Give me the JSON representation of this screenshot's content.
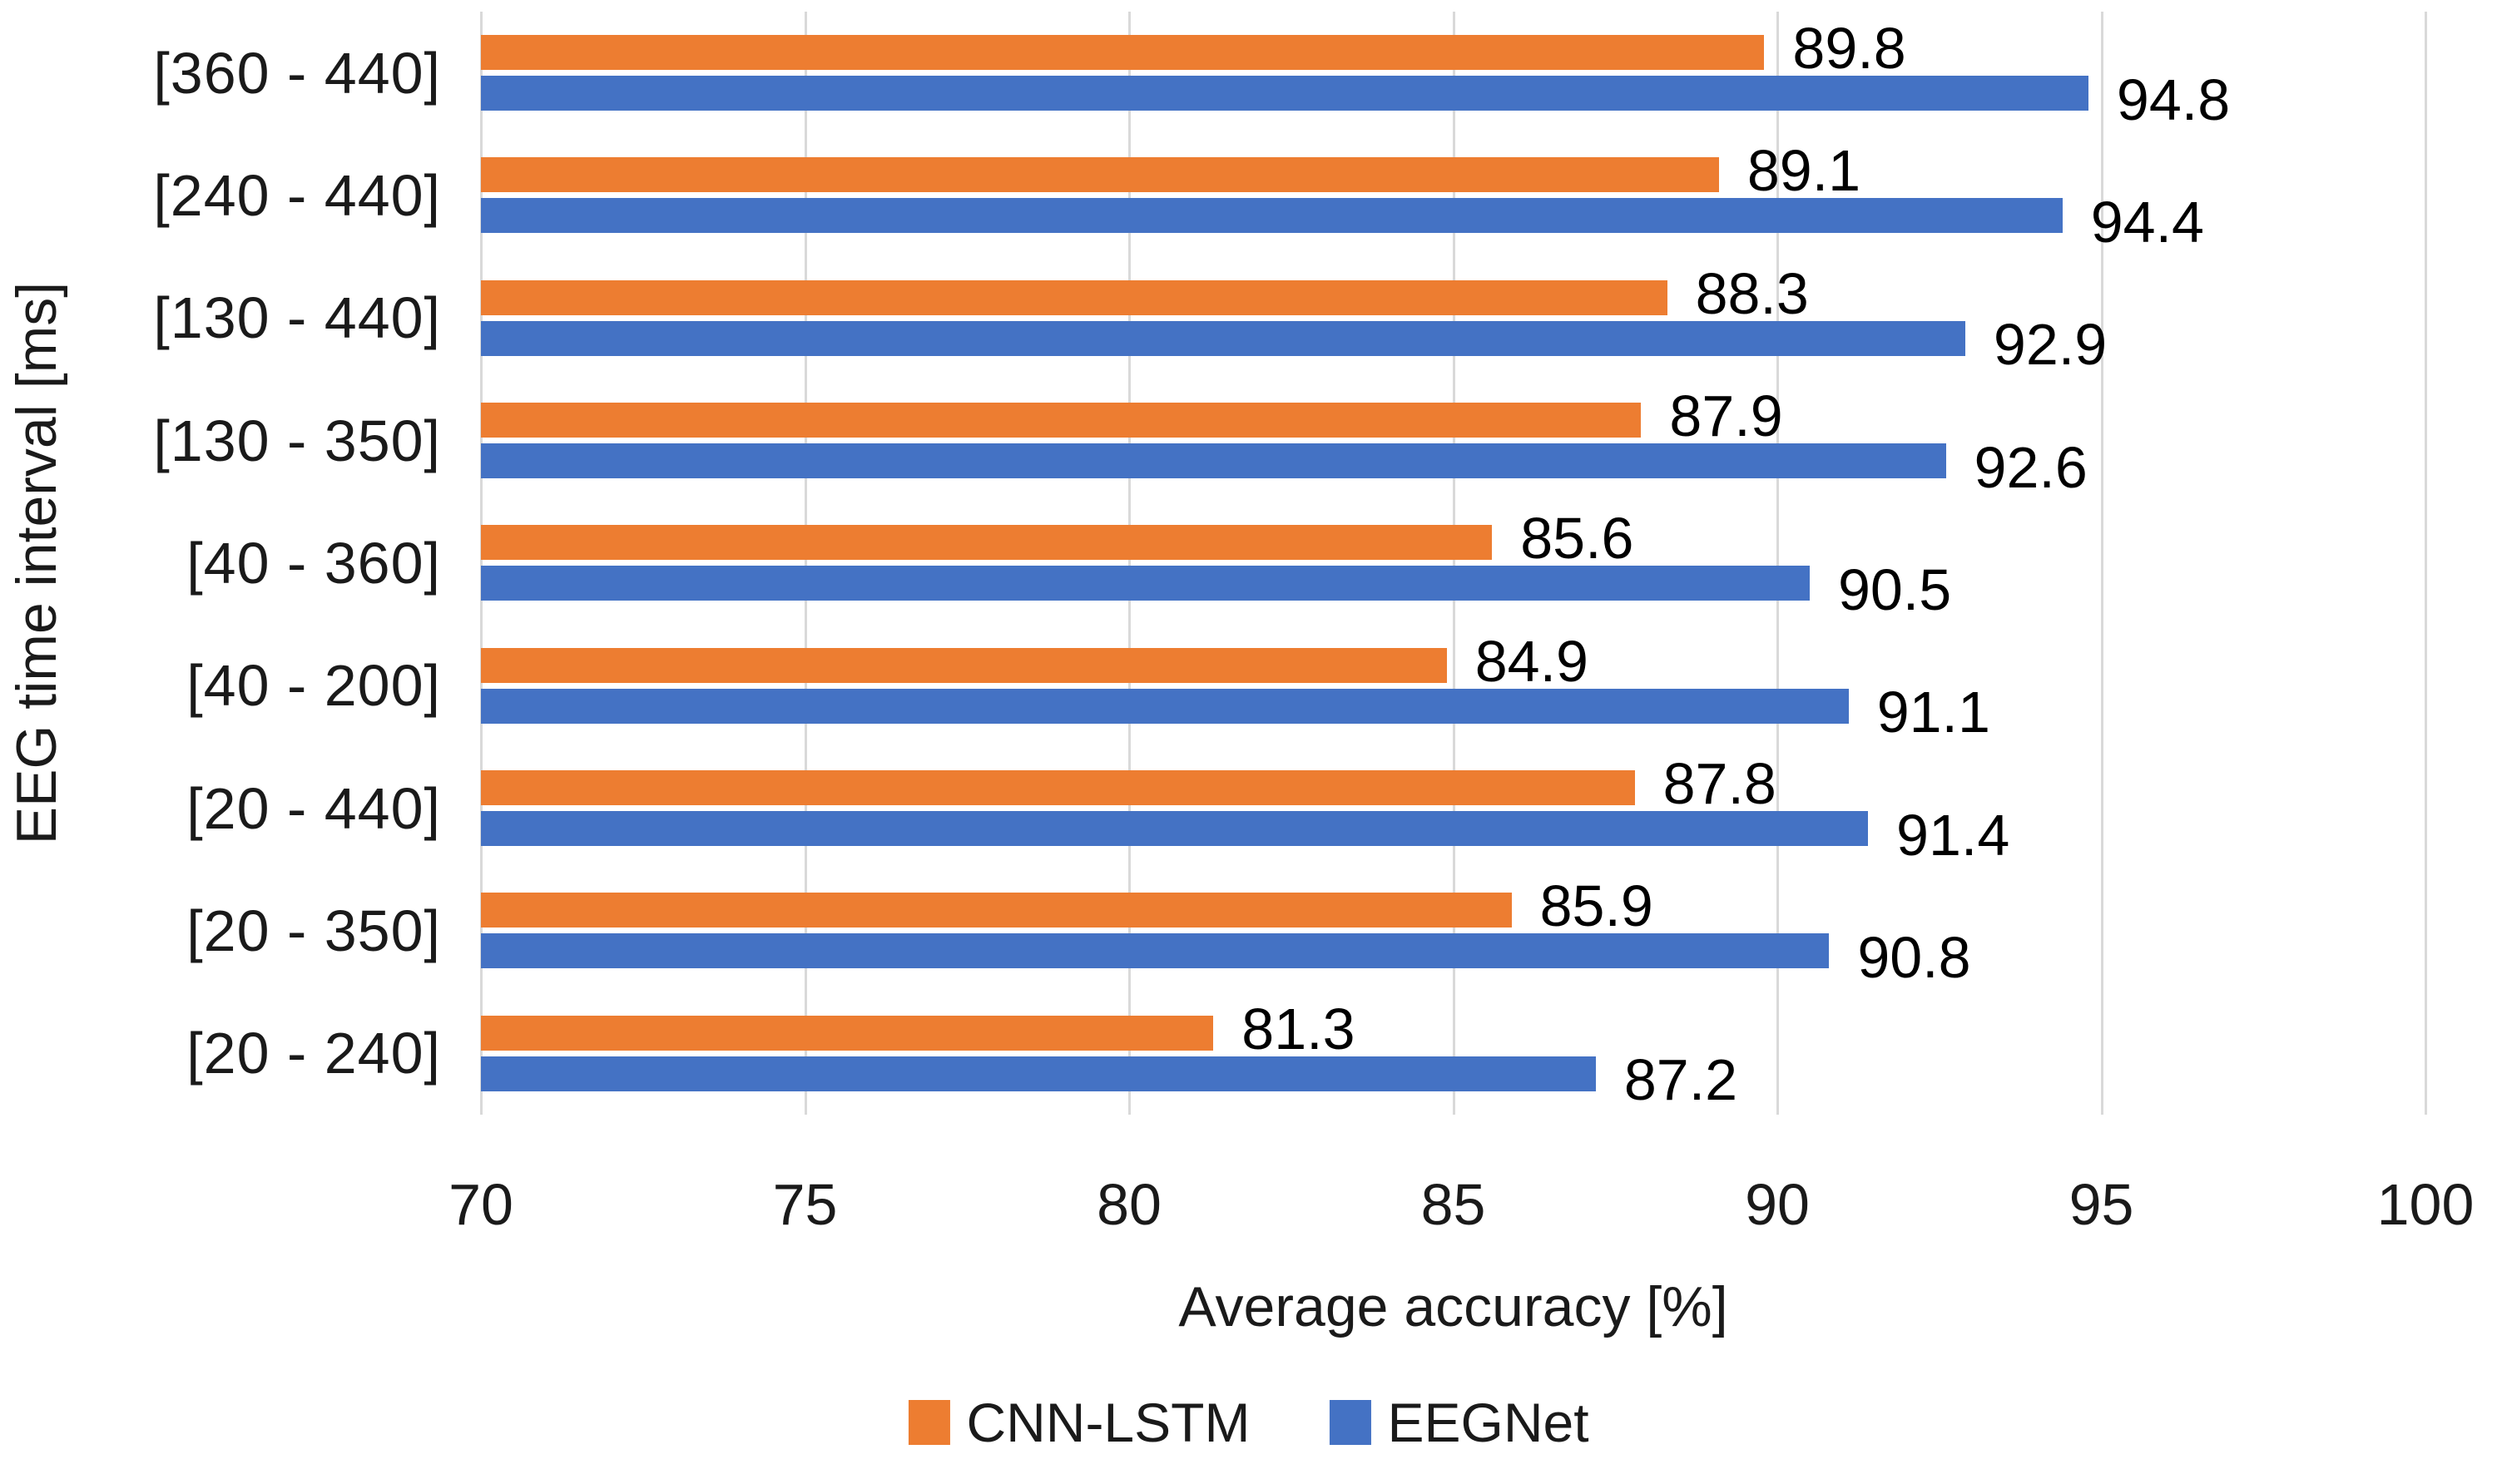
{
  "chart_data": {
    "type": "bar",
    "orientation": "horizontal",
    "title": "",
    "xlabel": "Average accuracy [%]",
    "ylabel": "EEG time interval [ms]",
    "xlim": [
      70,
      100
    ],
    "xticks": [
      70,
      75,
      80,
      85,
      90,
      95,
      100
    ],
    "grid": true,
    "legend_position": "bottom",
    "value_labels_shown": true,
    "categories": [
      "[360 - 440]",
      "[240 - 440]",
      "[130 - 440]",
      "[130 - 350]",
      "[40 - 360]",
      "[40 - 200]",
      "[20 - 440]",
      "[20 - 350]",
      "[20 - 240]"
    ],
    "series": [
      {
        "name": "CNN-LSTM",
        "color": "#ED7D31",
        "values": [
          89.8,
          89.1,
          88.3,
          87.9,
          85.6,
          84.9,
          87.8,
          85.9,
          81.3
        ]
      },
      {
        "name": "EEGNet",
        "color": "#4472C4",
        "values": [
          94.8,
          94.4,
          92.9,
          92.6,
          90.5,
          91.1,
          91.4,
          90.8,
          87.2
        ]
      }
    ],
    "colors": {
      "gridline": "#d9d9d9",
      "text": "#1a1a1a",
      "value_label": "#000000",
      "background": "#ffffff"
    }
  }
}
